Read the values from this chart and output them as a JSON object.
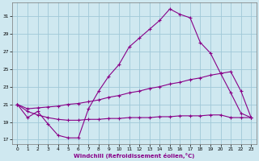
{
  "xlabel": "Windchill (Refroidissement éolien,°C)",
  "bg_color": "#cfe8f0",
  "grid_color": "#a0c8d8",
  "line_color": "#880088",
  "xlim": [
    -0.5,
    23.5
  ],
  "ylim": [
    16.5,
    32.5
  ],
  "yticks": [
    17,
    19,
    21,
    23,
    25,
    27,
    29,
    31
  ],
  "xticks": [
    0,
    1,
    2,
    3,
    4,
    5,
    6,
    7,
    8,
    9,
    10,
    11,
    12,
    13,
    14,
    15,
    16,
    17,
    18,
    19,
    20,
    21,
    22,
    23
  ],
  "line1_x": [
    0,
    1,
    2,
    3,
    4,
    5,
    6,
    7,
    8,
    9,
    10,
    11,
    12,
    13,
    14,
    15,
    16,
    17,
    18,
    19,
    20,
    21,
    22,
    23
  ],
  "line1_y": [
    21.0,
    19.5,
    20.2,
    18.8,
    17.5,
    17.2,
    17.2,
    20.5,
    22.5,
    24.2,
    25.5,
    27.5,
    28.5,
    29.5,
    30.5,
    31.8,
    31.2,
    30.8,
    28.0,
    26.8,
    24.5,
    22.3,
    20.0,
    19.5
  ],
  "line2_x": [
    0,
    1,
    2,
    3,
    4,
    5,
    6,
    7,
    8,
    9,
    10,
    11,
    12,
    13,
    14,
    15,
    16,
    17,
    18,
    19,
    20,
    21,
    22,
    23
  ],
  "line2_y": [
    21.0,
    20.5,
    20.6,
    20.7,
    20.8,
    21.0,
    21.1,
    21.3,
    21.5,
    21.8,
    22.0,
    22.3,
    22.5,
    22.8,
    23.0,
    23.3,
    23.5,
    23.8,
    24.0,
    24.3,
    24.5,
    24.7,
    22.5,
    19.5
  ],
  "line3_x": [
    0,
    1,
    2,
    3,
    4,
    5,
    6,
    7,
    8,
    9,
    10,
    11,
    12,
    13,
    14,
    15,
    16,
    17,
    18,
    19,
    20,
    21,
    22,
    23
  ],
  "line3_y": [
    21.0,
    20.2,
    19.8,
    19.5,
    19.3,
    19.2,
    19.2,
    19.3,
    19.3,
    19.4,
    19.4,
    19.5,
    19.5,
    19.5,
    19.6,
    19.6,
    19.7,
    19.7,
    19.7,
    19.8,
    19.8,
    19.5,
    19.5,
    19.5
  ],
  "marker": "+"
}
